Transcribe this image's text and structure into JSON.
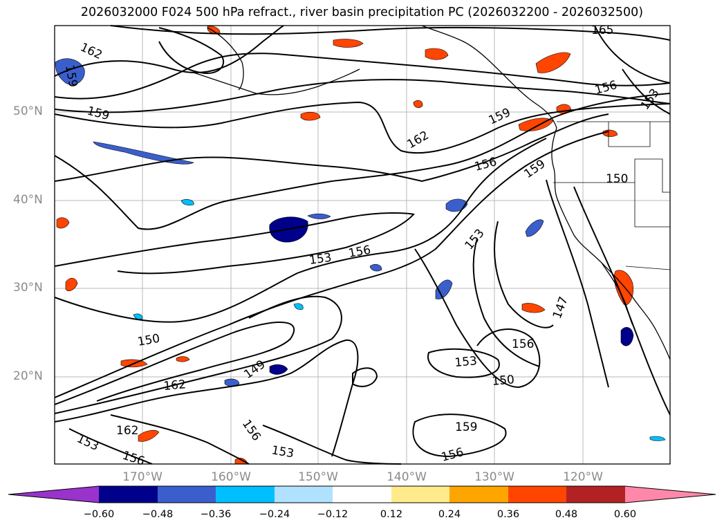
{
  "title": "2026032000 F024 500 hPa refract., river basin precipitation PC (2026032200 - 2026032500)",
  "map": {
    "lat_labels": [
      "50°N",
      "40°N",
      "30°N",
      "20°N"
    ],
    "lon_labels": [
      "170°W",
      "160°W",
      "150°W",
      "140°W",
      "130°W",
      "120°W"
    ],
    "contour_labels": [
      "165",
      "162",
      "159",
      "159",
      "156",
      "153",
      "162",
      "159",
      "156",
      "159",
      "150",
      "153",
      "156",
      "153",
      "147",
      "156",
      "150",
      "153",
      "150",
      "162",
      "149",
      "159",
      "162",
      "153",
      "156",
      "153",
      "156",
      "156"
    ]
  },
  "colorbar": {
    "ticks": [
      "−0.60",
      "−0.48",
      "−0.36",
      "−0.24",
      "−0.12",
      "0.12",
      "0.24",
      "0.36",
      "0.48",
      "0.60"
    ],
    "colors": [
      "#9933cc",
      "#00008b",
      "#3a5fcd",
      "#00bfff",
      "#b0e2ff",
      "#ffffff",
      "#ffeb8c",
      "#ffa500",
      "#ff4500",
      "#b22222",
      "#ff88aa"
    ]
  }
}
